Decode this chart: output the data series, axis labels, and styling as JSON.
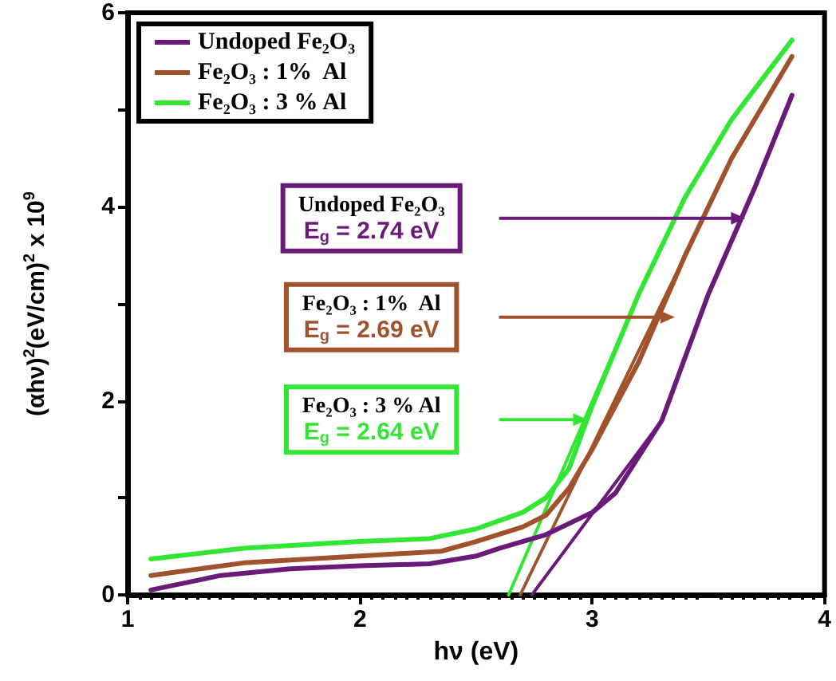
{
  "chart_data": {
    "type": "line",
    "xlabel": "hν (eV)",
    "ylabel": "(αhν)$^{2}$(eV/cm)$^{2}$ x 10$^{9}$",
    "series": [
      {
        "name": "Undoped Fe₂O₃",
        "color": "#6a1b7a",
        "x": [
          1.1,
          1.4,
          1.7,
          2.0,
          2.3,
          2.5,
          2.6,
          2.8,
          3.0,
          3.1,
          3.3,
          3.5,
          3.7,
          3.86
        ],
        "values": [
          0.05,
          0.2,
          0.27,
          0.3,
          0.32,
          0.4,
          0.48,
          0.62,
          0.85,
          1.05,
          1.8,
          3.1,
          4.2,
          5.15
        ]
      },
      {
        "name": "Fe₂O₃ : 1%  Al",
        "color": "#a0522d",
        "x": [
          1.1,
          1.5,
          2.0,
          2.35,
          2.5,
          2.7,
          2.8,
          2.9,
          3.0,
          3.2,
          3.4,
          3.6,
          3.86
        ],
        "values": [
          0.2,
          0.33,
          0.4,
          0.45,
          0.55,
          0.7,
          0.82,
          1.1,
          1.5,
          2.4,
          3.5,
          4.5,
          5.55
        ]
      },
      {
        "name": "Fe₂O₃ : 3 % Al",
        "color": "#33e633",
        "x": [
          1.1,
          1.5,
          2.0,
          2.3,
          2.5,
          2.7,
          2.8,
          2.9,
          3.0,
          3.2,
          3.4,
          3.6,
          3.86
        ],
        "values": [
          0.37,
          0.48,
          0.55,
          0.58,
          0.68,
          0.85,
          1.0,
          1.3,
          1.95,
          3.1,
          4.1,
          4.9,
          5.72
        ]
      },
      {
        "type": "line",
        "color": "#6a1b7a",
        "x": [
          2.74,
          3.3
        ],
        "values": [
          0,
          1.8
        ]
      },
      {
        "type": "line",
        "color": "#a0522d",
        "x": [
          2.69,
          3.4
        ],
        "values": [
          0,
          3.5
        ]
      },
      {
        "type": "line",
        "color": "#33e633",
        "x": [
          2.64,
          3.2
        ],
        "values": [
          0,
          3.1
        ]
      }
    ],
    "annotations": [
      "Undoped Fe₂O₃\nE$_{g}$ = 2.74 eV",
      "Fe₂O₃ : 1%  Al\nE$_{g}$ = 2.69 eV",
      "Fe₂O₃ : 3 % Al\nE$_{g}$ = 2.64 eV"
    ],
    "xlim": [
      1,
      4
    ],
    "xticks": [
      1,
      2,
      3,
      4
    ],
    "ylim": [
      0,
      6
    ],
    "yticks": [
      0,
      {
        "value": 1,
        "label": null
      },
      2,
      {
        "value": 3,
        "label": null
      },
      4,
      {
        "value": 5,
        "label": null
      },
      6
    ],
    "legend": "top left",
    "grid": false,
    "marker": "none",
    "line_style": "solid"
  }
}
